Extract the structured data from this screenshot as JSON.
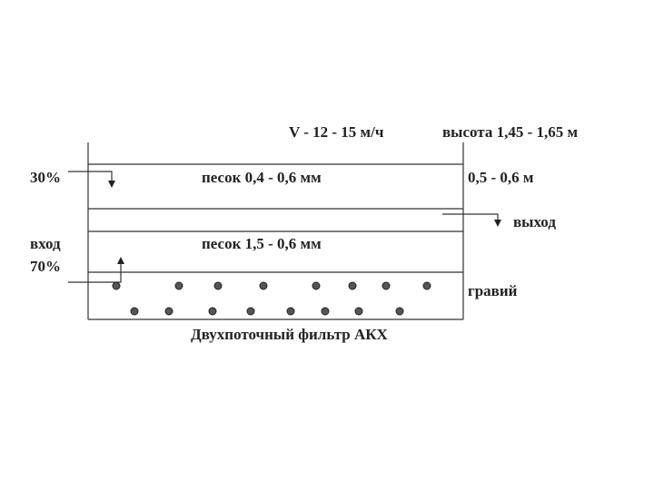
{
  "header": {
    "speed": "V -  12 - 15 м/ч",
    "height": "высота 1,45 - 1,65 м"
  },
  "layers": [
    {
      "label": "песок 0,4 - 0,6 мм",
      "thickness": "0,5 - 0,6 м"
    },
    {
      "label": "песок 1,5 - 0,6 мм"
    },
    {
      "label": "гравий"
    }
  ],
  "flows": {
    "top_share": "30%",
    "inlet": "вход",
    "bottom_share": "70%",
    "outlet": "выход"
  },
  "caption": "Двухпоточный фильтр АКХ"
}
